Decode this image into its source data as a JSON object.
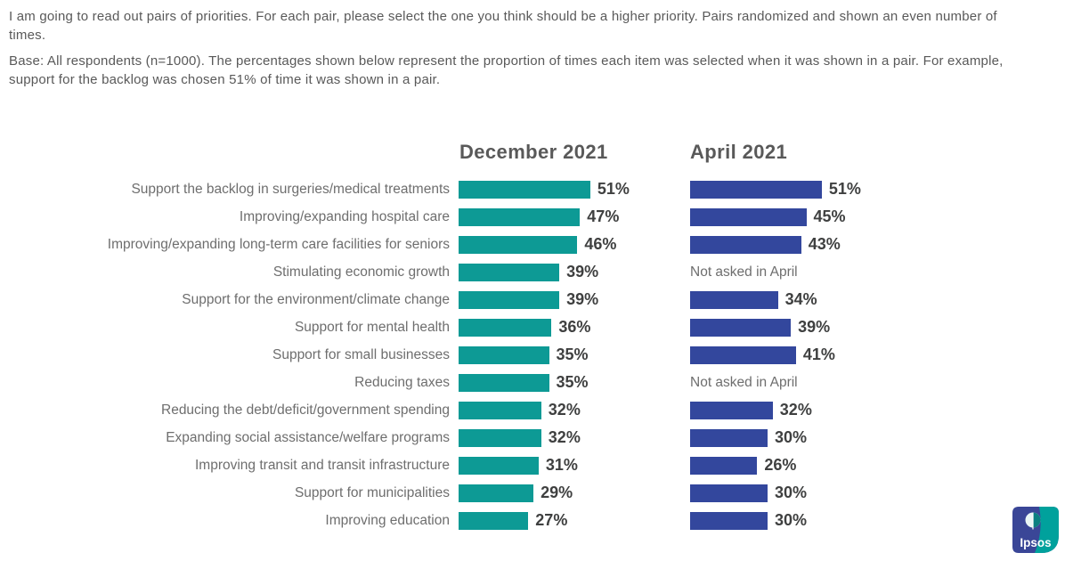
{
  "header": {
    "question_text": "I am going to read out pairs of priorities. For each pair, please select the one you think should be a higher priority.  Pairs randomized and shown an even number of times.",
    "base_text": "Base: All respondents (n=1000).   The percentages shown below represent the proportion of times each item was selected when it was shown in a pair.  For example, support for the backlog was chosen 51% of time it was shown in a pair."
  },
  "chart_data": {
    "type": "bar",
    "orientation": "horizontal",
    "grid": false,
    "value_suffix": "%",
    "xlim": [
      0,
      55
    ],
    "legend_position": "column-headers",
    "categories": [
      "Support the backlog in surgeries/medical treatments",
      "Improving/expanding hospital care",
      "Improving/expanding long-term care facilities for seniors",
      "Stimulating economic growth",
      "Support for the environment/climate change",
      "Support for mental health",
      "Support for small businesses",
      "Reducing taxes",
      "Reducing the debt/deficit/government spending",
      "Expanding social assistance/welfare programs",
      "Improving transit and transit infrastructure",
      "Support for municipalities",
      "Improving education"
    ],
    "series": [
      {
        "name": "December 2021",
        "color": "#0d9a95",
        "values": [
          51,
          47,
          46,
          39,
          39,
          36,
          35,
          35,
          32,
          32,
          31,
          29,
          27
        ]
      },
      {
        "name": "April 2021",
        "color": "#33479d",
        "values": [
          51,
          45,
          43,
          null,
          34,
          39,
          41,
          null,
          32,
          30,
          26,
          30,
          30
        ]
      }
    ],
    "not_asked_label": "Not asked in April"
  },
  "logo": {
    "text": "Ipsos",
    "blue": "#3a4697",
    "teal": "#00a19c"
  }
}
